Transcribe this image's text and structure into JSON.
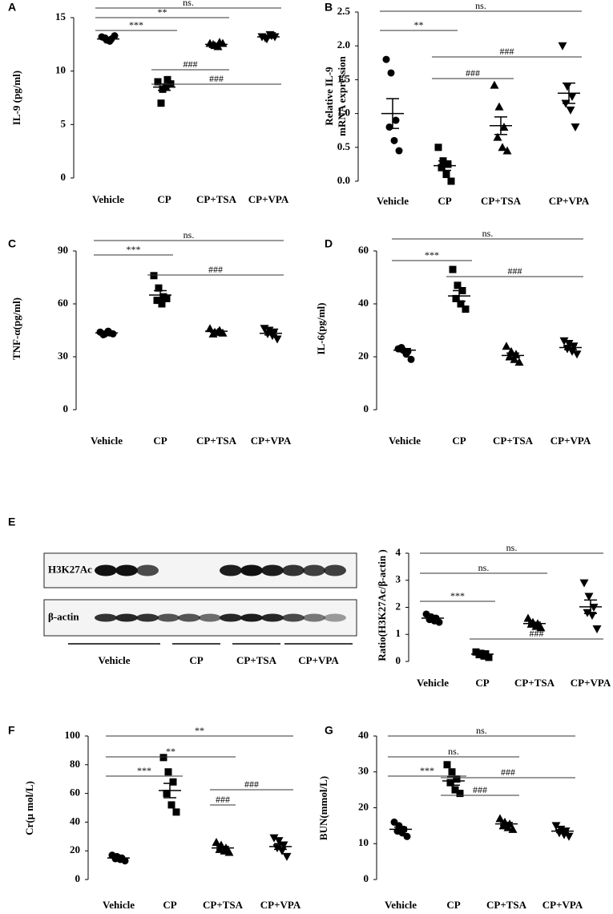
{
  "chart_data": [
    {
      "type": "dotplot",
      "panel": "A",
      "ylabel": "IL-9 (pg/ml)",
      "categories": [
        "Vehicle",
        "CP",
        "CP+TSA",
        "CP+VPA"
      ],
      "markers": [
        "circle",
        "square",
        "triangle",
        "triangle-down"
      ],
      "color": "#000000",
      "points": [
        [
          13.2,
          12.9,
          13.0,
          13.1,
          12.8,
          13.3
        ],
        [
          9.0,
          8.3,
          9.2,
          7.0,
          8.5,
          8.8
        ],
        [
          12.6,
          12.4,
          12.7,
          12.5,
          12.3,
          12.6
        ],
        [
          13.2,
          13.0,
          13.3,
          13.1,
          13.4,
          13.2
        ]
      ],
      "mean": [
        13.0,
        8.5,
        12.5,
        13.2
      ],
      "sem": [
        0.1,
        0.3,
        0.1,
        0.1
      ],
      "ylim": [
        0,
        15
      ],
      "yticks": [
        0,
        5,
        10,
        15
      ],
      "annotations": [
        {
          "text": "ns.",
          "between": [
            "Vehicle",
            "CP+VPA"
          ]
        },
        {
          "text": "**",
          "between": [
            "Vehicle",
            "CP+TSA"
          ]
        },
        {
          "text": "***",
          "between": [
            "Vehicle",
            "CP"
          ]
        },
        {
          "text": "###",
          "between": [
            "CP",
            "CP+TSA"
          ]
        },
        {
          "text": "###",
          "between": [
            "CP",
            "CP+VPA"
          ]
        }
      ]
    },
    {
      "type": "dotplot",
      "panel": "B",
      "ylabel": [
        "Relative IL-9",
        "mRNA expression"
      ],
      "categories": [
        "Vehicle",
        "CP",
        "CP+TSA",
        "CP+VPA"
      ],
      "markers": [
        "circle",
        "square",
        "triangle",
        "triangle-down"
      ],
      "color": "#000000",
      "points": [
        [
          1.8,
          1.6,
          0.9,
          0.8,
          0.6,
          0.45
        ],
        [
          0.5,
          0.3,
          0.25,
          0.2,
          0.1,
          0.0
        ],
        [
          1.42,
          1.1,
          0.8,
          0.65,
          0.5,
          0.45
        ],
        [
          2.0,
          1.4,
          1.25,
          1.15,
          1.05,
          0.8
        ]
      ],
      "mean": [
        1.0,
        0.23,
        0.82,
        1.3
      ],
      "sem": [
        0.22,
        0.07,
        0.13,
        0.15
      ],
      "ylim": [
        0,
        2.5
      ],
      "yticks": [
        {
          "value": 0,
          "label": "0.0"
        },
        0.5,
        {
          "value": 1,
          "label": "1.0"
        },
        1.5,
        {
          "value": 2,
          "label": "2.0"
        },
        2.5
      ],
      "annotations": [
        {
          "text": "ns.",
          "between": [
            "Vehicle",
            "CP+VPA"
          ]
        },
        {
          "text": "**",
          "between": [
            "Vehicle",
            "CP"
          ]
        },
        {
          "text": "###",
          "between": [
            "CP",
            "CP+VPA"
          ]
        },
        {
          "text": "###",
          "between": [
            "CP",
            "CP+TSA"
          ]
        }
      ]
    },
    {
      "type": "dotplot",
      "panel": "C",
      "ylabel": "TNF-α(pg/ml)",
      "categories": [
        "Vehicle",
        "CP",
        "CP+TSA",
        "CP+VPA"
      ],
      "markers": [
        "circle",
        "square",
        "triangle",
        "triangle-down"
      ],
      "color": "#000000",
      "points": [
        [
          44,
          43,
          43.5,
          42.5,
          44.5,
          43
        ],
        [
          76,
          69,
          64,
          62,
          60,
          63
        ],
        [
          46,
          44,
          45,
          43,
          44,
          43.5
        ],
        [
          46,
          45,
          44,
          43,
          42,
          40
        ]
      ],
      "mean": [
        43.5,
        65,
        44.5,
        43.3
      ],
      "sem": [
        0.5,
        2.5,
        0.6,
        0.9
      ],
      "ylim": [
        0,
        90
      ],
      "yticks": [
        0,
        30,
        60,
        90
      ],
      "annotations": [
        {
          "text": "ns.",
          "between": [
            "Vehicle",
            "CP+VPA"
          ]
        },
        {
          "text": "***",
          "between": [
            "Vehicle",
            "CP"
          ]
        },
        {
          "text": "###",
          "between": [
            "CP",
            "CP+VPA"
          ]
        }
      ]
    },
    {
      "type": "dotplot",
      "panel": "D",
      "ylabel": "IL-6(pg/ml)",
      "categories": [
        "Vehicle",
        "CP",
        "CP+TSA",
        "CP+VPA"
      ],
      "markers": [
        "circle",
        "square",
        "triangle",
        "triangle-down"
      ],
      "color": "#000000",
      "points": [
        [
          23,
          22.5,
          22,
          23.5,
          21,
          19
        ],
        [
          53,
          47,
          45,
          42,
          40,
          38
        ],
        [
          24,
          22,
          21,
          20,
          19,
          18
        ],
        [
          26,
          25,
          24,
          23,
          22,
          21
        ]
      ],
      "mean": [
        22.5,
        43,
        20.5,
        23.5
      ],
      "sem": [
        0.6,
        2,
        0.9,
        0.8
      ],
      "ylim": [
        0,
        60
      ],
      "yticks": [
        0,
        20,
        40,
        60
      ],
      "annotations": [
        {
          "text": "ns.",
          "between": [
            "Vehicle",
            "CP+VPA"
          ]
        },
        {
          "text": "***",
          "between": [
            "Vehicle",
            "CP"
          ]
        },
        {
          "text": "###",
          "between": [
            "CP",
            "CP+VPA"
          ]
        }
      ]
    },
    {
      "type": "dotplot",
      "panel": "E",
      "ylabel": "Ratio(H3K27Ac/β-actin )",
      "categories": [
        "Vehicle",
        "CP",
        "CP+TSA",
        "CP+VPA"
      ],
      "markers": [
        "circle",
        "square",
        "triangle",
        "triangle-down"
      ],
      "color": "#000000",
      "points": [
        [
          1.75,
          1.65,
          1.6,
          1.55,
          1.5,
          1.45
        ],
        [
          0.35,
          0.3,
          0.28,
          0.25,
          0.2,
          0.15
        ],
        [
          1.6,
          1.45,
          1.4,
          1.38,
          1.3,
          1.25
        ],
        [
          2.9,
          2.4,
          2.0,
          1.8,
          1.7,
          1.2
        ]
      ],
      "mean": [
        1.6,
        0.27,
        1.4,
        2.02
      ],
      "sem": [
        0.07,
        0.03,
        0.05,
        0.25
      ],
      "ylim": [
        0,
        4
      ],
      "yticks": [
        0,
        1,
        2,
        3,
        4
      ],
      "annotations": [
        {
          "text": "ns.",
          "between": [
            "Vehicle",
            "CP+VPA"
          ]
        },
        {
          "text": "ns.",
          "between": [
            "Vehicle",
            "CP+TSA"
          ]
        },
        {
          "text": "***",
          "between": [
            "Vehicle",
            "CP"
          ]
        },
        {
          "text": "###",
          "between": [
            "CP",
            "CP+VPA"
          ]
        }
      ]
    },
    {
      "type": "dotplot",
      "panel": "F",
      "ylabel": "Cr(μ mol/L)",
      "categories": [
        "Vehicle",
        "CP",
        "CP+TSA",
        "CP+VPA"
      ],
      "markers": [
        "circle",
        "square",
        "triangle",
        "triangle-down"
      ],
      "color": "#000000",
      "points": [
        [
          17,
          16,
          15,
          14.5,
          14,
          13
        ],
        [
          85,
          75,
          68,
          60,
          52,
          47
        ],
        [
          26,
          24,
          22,
          21,
          20,
          19
        ],
        [
          29,
          27,
          24,
          22,
          20,
          16
        ]
      ],
      "mean": [
        15,
        62,
        22,
        23
      ],
      "sem": [
        0.6,
        5,
        1,
        2
      ],
      "ylim": [
        0,
        100
      ],
      "yticks": [
        0,
        20,
        40,
        60,
        80,
        100
      ],
      "annotations": [
        {
          "text": "**",
          "between": [
            "Vehicle",
            "CP+VPA"
          ]
        },
        {
          "text": "**",
          "between": [
            "Vehicle",
            "CP+TSA"
          ]
        },
        {
          "text": "***",
          "between": [
            "Vehicle",
            "CP"
          ]
        },
        {
          "text": "###",
          "between": [
            "CP+TSA",
            "CP+VPA"
          ]
        },
        {
          "text": "###",
          "between": [
            "CP+TSA",
            "CP+TSA"
          ]
        }
      ]
    },
    {
      "type": "dotplot",
      "panel": "G",
      "ylabel": "BUN(mmol/L)",
      "categories": [
        "Vehicle",
        "CP",
        "CP+TSA",
        "CP+VPA"
      ],
      "markers": [
        "circle",
        "square",
        "triangle",
        "triangle-down"
      ],
      "color": "#000000",
      "points": [
        [
          16,
          15,
          14,
          13.5,
          13,
          12
        ],
        [
          32,
          30,
          28,
          27,
          25,
          24
        ],
        [
          17,
          16,
          15.5,
          15,
          14.5,
          14
        ],
        [
          15,
          14,
          13.5,
          13,
          12.5,
          12
        ]
      ],
      "mean": [
        14,
        27.5,
        15.5,
        13.5
      ],
      "sem": [
        0.6,
        1.2,
        0.4,
        0.4
      ],
      "ylim": [
        0,
        40
      ],
      "yticks": [
        0,
        10,
        20,
        30,
        40
      ],
      "annotations": [
        {
          "text": "ns.",
          "between": [
            "Vehicle",
            "CP+VPA"
          ]
        },
        {
          "text": "ns.",
          "between": [
            "Vehicle",
            "CP+TSA"
          ]
        },
        {
          "text": "***",
          "between": [
            "Vehicle",
            "CP"
          ]
        },
        {
          "text": "###",
          "between": [
            "CP",
            "CP+VPA"
          ]
        },
        {
          "text": "###",
          "between": [
            "CP",
            "CP+TSA"
          ]
        }
      ]
    }
  ],
  "blot": {
    "rows": [
      "H3K27Ac",
      "β-actin"
    ],
    "groups": [
      "Vehicle",
      "CP",
      "CP+TSA",
      "CP+VPA"
    ]
  }
}
